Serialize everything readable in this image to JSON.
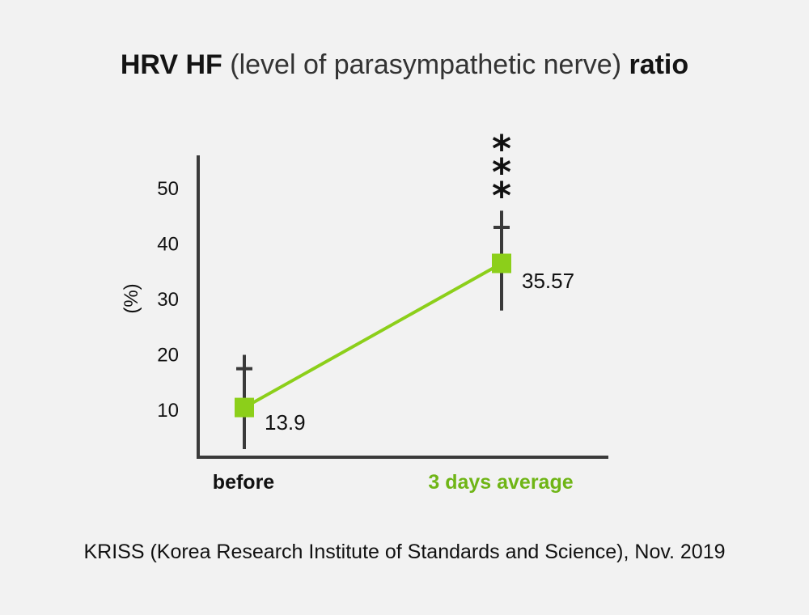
{
  "title": {
    "part1": "HRV HF",
    "part2": " (level of parasympathetic nerve) ",
    "part3": "ratio"
  },
  "source": "KRISS (Korea Research Institute of Standards and Science), Nov. 2019",
  "colors": {
    "accent": "#8ccf1a",
    "axis": "#3a3a3a",
    "background": "#f2f2f2"
  },
  "chart_data": {
    "type": "line",
    "categories": [
      "before",
      "3 days average"
    ],
    "category_colors": [
      "#111111",
      "#6fb516"
    ],
    "values": [
      13.9,
      35.57
    ],
    "display_values": [
      10.5,
      36.5
    ],
    "data_labels": [
      "13.9",
      "35.57"
    ],
    "error_bars": [
      {
        "low": 3,
        "high": 20,
        "cap": 17.5
      },
      {
        "low": 28,
        "high": 46,
        "cap": 43
      }
    ],
    "significance": [
      "",
      "***"
    ],
    "ylabel": "(%)",
    "yticks": [
      10,
      20,
      30,
      40,
      50
    ],
    "ylim": [
      0,
      56
    ],
    "grid": false,
    "marker": "square"
  }
}
